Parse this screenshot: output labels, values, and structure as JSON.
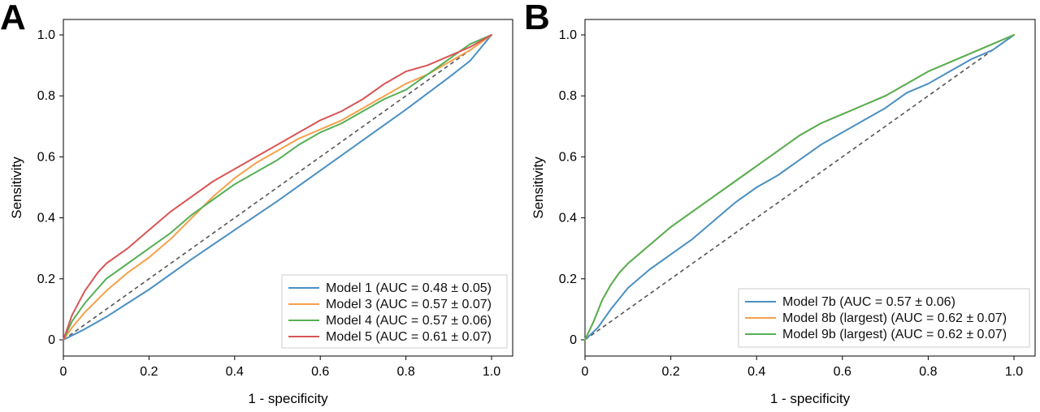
{
  "chart_data": [
    {
      "panel": "A",
      "type": "line",
      "xlabel": "1 - specificity",
      "ylabel": "Sensitivity",
      "xlim": [
        0,
        1
      ],
      "ylim": [
        0,
        1
      ],
      "xticks": [
        "0",
        "0.2",
        "0.4",
        "0.6",
        "0.8",
        "1.0"
      ],
      "yticks": [
        "0",
        "0.2",
        "0.4",
        "0.6",
        "0.8",
        "1.0"
      ],
      "legend_position": "lower-right",
      "diagonal_reference": true,
      "series": [
        {
          "name": "Model 1 (AUC = 0.48 ± 0.05)",
          "color": "#4a90c2",
          "x": [
            0,
            0.05,
            0.1,
            0.15,
            0.2,
            0.3,
            0.4,
            0.5,
            0.6,
            0.7,
            0.8,
            0.9,
            0.95,
            1.0
          ],
          "y": [
            0,
            0.035,
            0.075,
            0.12,
            0.165,
            0.265,
            0.36,
            0.455,
            0.555,
            0.655,
            0.755,
            0.86,
            0.915,
            1.0
          ]
        },
        {
          "name": "Model 3 (AUC = 0.57 ± 0.07)",
          "color": "#f5a04a",
          "x": [
            0,
            0.02,
            0.05,
            0.1,
            0.15,
            0.2,
            0.25,
            0.3,
            0.35,
            0.4,
            0.45,
            0.5,
            0.55,
            0.6,
            0.65,
            0.7,
            0.75,
            0.8,
            0.85,
            0.9,
            0.95,
            1.0
          ],
          "y": [
            0,
            0.04,
            0.09,
            0.16,
            0.22,
            0.27,
            0.33,
            0.4,
            0.47,
            0.53,
            0.58,
            0.62,
            0.66,
            0.69,
            0.72,
            0.76,
            0.8,
            0.84,
            0.87,
            0.91,
            0.95,
            1.0
          ]
        },
        {
          "name": "Model 4 (AUC = 0.57 ± 0.06)",
          "color": "#55b055",
          "x": [
            0,
            0.02,
            0.05,
            0.1,
            0.15,
            0.2,
            0.25,
            0.3,
            0.35,
            0.4,
            0.45,
            0.5,
            0.55,
            0.6,
            0.65,
            0.7,
            0.75,
            0.8,
            0.85,
            0.9,
            0.95,
            1.0
          ],
          "y": [
            0,
            0.06,
            0.12,
            0.2,
            0.25,
            0.3,
            0.35,
            0.41,
            0.46,
            0.51,
            0.55,
            0.59,
            0.64,
            0.68,
            0.71,
            0.75,
            0.79,
            0.82,
            0.87,
            0.92,
            0.97,
            1.0
          ]
        },
        {
          "name": "Model 5 (AUC = 0.61 ± 0.07)",
          "color": "#d95555",
          "x": [
            0,
            0.02,
            0.05,
            0.08,
            0.1,
            0.15,
            0.2,
            0.25,
            0.3,
            0.35,
            0.4,
            0.45,
            0.5,
            0.55,
            0.6,
            0.65,
            0.7,
            0.75,
            0.8,
            0.85,
            0.9,
            0.95,
            1.0
          ],
          "y": [
            0,
            0.08,
            0.16,
            0.22,
            0.25,
            0.3,
            0.36,
            0.42,
            0.47,
            0.52,
            0.56,
            0.6,
            0.64,
            0.68,
            0.72,
            0.75,
            0.79,
            0.84,
            0.88,
            0.9,
            0.93,
            0.96,
            1.0
          ]
        }
      ]
    },
    {
      "panel": "B",
      "type": "line",
      "xlabel": "1 - specificity",
      "ylabel": "Sensitivity",
      "xlim": [
        0,
        1
      ],
      "ylim": [
        0,
        1
      ],
      "xticks": [
        "0",
        "0.2",
        "0.4",
        "0.6",
        "0.8",
        "1.0"
      ],
      "yticks": [
        "0",
        "0.2",
        "0.4",
        "0.6",
        "0.8",
        "1.0"
      ],
      "legend_position": "lower-right",
      "diagonal_reference": true,
      "series": [
        {
          "name": "Model 7b (AUC = 0.57 ± 0.06)",
          "color": "#4a90c2",
          "x": [
            0,
            0.03,
            0.06,
            0.1,
            0.15,
            0.2,
            0.25,
            0.3,
            0.35,
            0.4,
            0.45,
            0.5,
            0.55,
            0.6,
            0.65,
            0.7,
            0.75,
            0.8,
            0.85,
            0.9,
            0.95,
            1.0
          ],
          "y": [
            0,
            0.04,
            0.1,
            0.17,
            0.23,
            0.28,
            0.33,
            0.39,
            0.45,
            0.5,
            0.54,
            0.59,
            0.64,
            0.68,
            0.72,
            0.76,
            0.81,
            0.84,
            0.88,
            0.92,
            0.95,
            1.0
          ]
        },
        {
          "name": "Model 8b (largest) (AUC = 0.62 ± 0.07)",
          "color": "#f5a04a",
          "x": [
            0,
            0.02,
            0.04,
            0.06,
            0.08,
            0.1,
            0.15,
            0.2,
            0.25,
            0.3,
            0.35,
            0.4,
            0.45,
            0.5,
            0.55,
            0.6,
            0.65,
            0.7,
            0.75,
            0.8,
            0.85,
            0.9,
            0.95,
            1.0
          ],
          "y": [
            0,
            0.06,
            0.13,
            0.18,
            0.22,
            0.25,
            0.31,
            0.37,
            0.42,
            0.47,
            0.52,
            0.57,
            0.62,
            0.67,
            0.71,
            0.74,
            0.77,
            0.8,
            0.84,
            0.88,
            0.91,
            0.94,
            0.97,
            1.0
          ]
        },
        {
          "name": "Model 9b (largest) (AUC = 0.62 ± 0.07)",
          "color": "#55b055",
          "x": [
            0,
            0.02,
            0.04,
            0.06,
            0.08,
            0.1,
            0.15,
            0.2,
            0.25,
            0.3,
            0.35,
            0.4,
            0.45,
            0.5,
            0.55,
            0.6,
            0.65,
            0.7,
            0.75,
            0.8,
            0.85,
            0.9,
            0.95,
            1.0
          ],
          "y": [
            0,
            0.06,
            0.13,
            0.18,
            0.22,
            0.25,
            0.31,
            0.37,
            0.42,
            0.47,
            0.52,
            0.57,
            0.62,
            0.67,
            0.71,
            0.74,
            0.77,
            0.8,
            0.84,
            0.88,
            0.91,
            0.94,
            0.97,
            1.0
          ]
        }
      ]
    }
  ]
}
